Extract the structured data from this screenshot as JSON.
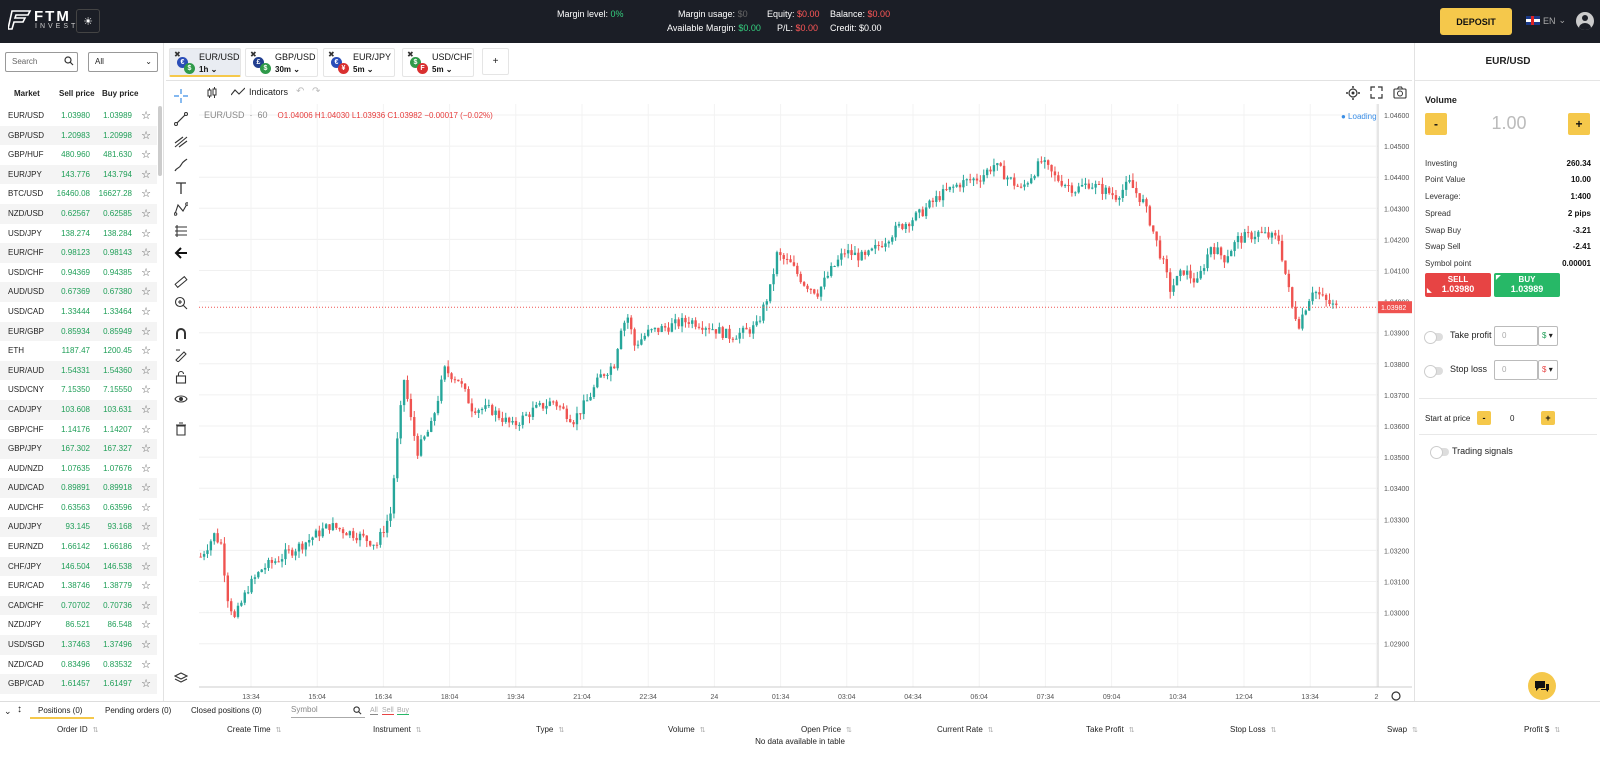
{
  "header": {
    "logo_text": "FTM",
    "logo_sub": "INVEST",
    "margin_level_label": "Margin level:",
    "margin_level_value": "0%",
    "margin_usage_label": "Margin usage:",
    "margin_usage_value": "$0",
    "available_margin_label": "Available Margin:",
    "available_margin_value": "$0.00",
    "equity_label": "Equity:",
    "equity_value": "$0.00",
    "pl_label": "P/L:",
    "pl_value": "$0.00",
    "balance_label": "Balance:",
    "balance_value": "$0.00",
    "credit_label": "Credit:",
    "credit_value": "$0.00",
    "deposit_label": "DEPOSIT",
    "language": "EN"
  },
  "market_panel": {
    "search_placeholder": "Search",
    "filter_value": "All",
    "col_market": "Market",
    "col_sell": "Sell price",
    "col_buy": "Buy price",
    "rows": [
      {
        "symbol": "EUR/USD",
        "sell": "1.03980",
        "buy": "1.03989"
      },
      {
        "symbol": "GBP/USD",
        "sell": "1.20983",
        "buy": "1.20998"
      },
      {
        "symbol": "GBP/HUF",
        "sell": "480.960",
        "buy": "481.630"
      },
      {
        "symbol": "EUR/JPY",
        "sell": "143.776",
        "buy": "143.794"
      },
      {
        "symbol": "BTC/USD",
        "sell": "16460.08",
        "buy": "16627.28"
      },
      {
        "symbol": "NZD/USD",
        "sell": "0.62567",
        "buy": "0.62585"
      },
      {
        "symbol": "USD/JPY",
        "sell": "138.274",
        "buy": "138.284"
      },
      {
        "symbol": "EUR/CHF",
        "sell": "0.98123",
        "buy": "0.98143"
      },
      {
        "symbol": "USD/CHF",
        "sell": "0.94369",
        "buy": "0.94385"
      },
      {
        "symbol": "AUD/USD",
        "sell": "0.67369",
        "buy": "0.67380"
      },
      {
        "symbol": "USD/CAD",
        "sell": "1.33444",
        "buy": "1.33464"
      },
      {
        "symbol": "EUR/GBP",
        "sell": "0.85934",
        "buy": "0.85949"
      },
      {
        "symbol": "ETH",
        "sell": "1187.47",
        "buy": "1200.45"
      },
      {
        "symbol": "EUR/AUD",
        "sell": "1.54331",
        "buy": "1.54360"
      },
      {
        "symbol": "USD/CNY",
        "sell": "7.15350",
        "buy": "7.15550"
      },
      {
        "symbol": "CAD/JPY",
        "sell": "103.608",
        "buy": "103.631"
      },
      {
        "symbol": "GBP/CHF",
        "sell": "1.14176",
        "buy": "1.14207"
      },
      {
        "symbol": "GBP/JPY",
        "sell": "167.302",
        "buy": "167.327"
      },
      {
        "symbol": "AUD/NZD",
        "sell": "1.07635",
        "buy": "1.07676"
      },
      {
        "symbol": "AUD/CAD",
        "sell": "0.89891",
        "buy": "0.89918"
      },
      {
        "symbol": "AUD/CHF",
        "sell": "0.63563",
        "buy": "0.63596"
      },
      {
        "symbol": "AUD/JPY",
        "sell": "93.145",
        "buy": "93.168"
      },
      {
        "symbol": "EUR/NZD",
        "sell": "1.66142",
        "buy": "1.66186"
      },
      {
        "symbol": "CHF/JPY",
        "sell": "146.504",
        "buy": "146.538"
      },
      {
        "symbol": "EUR/CAD",
        "sell": "1.38746",
        "buy": "1.38779"
      },
      {
        "symbol": "CAD/CHF",
        "sell": "0.70702",
        "buy": "0.70736"
      },
      {
        "symbol": "NZD/JPY",
        "sell": "86.521",
        "buy": "86.548"
      },
      {
        "symbol": "USD/SGD",
        "sell": "1.37463",
        "buy": "1.37496"
      },
      {
        "symbol": "NZD/CAD",
        "sell": "0.83496",
        "buy": "0.83532"
      },
      {
        "symbol": "GBP/CAD",
        "sell": "1.61457",
        "buy": "1.61497"
      }
    ]
  },
  "instrument_tabs": [
    {
      "name": "EUR/USD",
      "timeframe": "1h",
      "active": true,
      "coin1": "€",
      "coin1_color": "#2a4db8",
      "coin2": "$",
      "coin2_color": "#2f9a4a"
    },
    {
      "name": "GBP/USD",
      "timeframe": "30m",
      "active": false,
      "coin1": "£",
      "coin1_color": "#223f8f",
      "coin2": "$",
      "coin2_color": "#2f9a4a"
    },
    {
      "name": "EUR/JPY",
      "timeframe": "5m",
      "active": false,
      "coin1": "€",
      "coin1_color": "#2a4db8",
      "coin2": "¥",
      "coin2_color": "#d93030"
    },
    {
      "name": "USD/CHF",
      "timeframe": "5m",
      "active": false,
      "coin1": "$",
      "coin1_color": "#2f9a4a",
      "coin2": "F",
      "coin2_color": "#d93030"
    }
  ],
  "add_tab_label": "+",
  "chart_toolbar": {
    "indicators_label": "Indicators"
  },
  "chart_header": {
    "symbol": "EUR/USD",
    "interval": "60",
    "ohlc": "O1.04006  H1.04030  L1.03936  C1.03982  −0.00017 (−0.02%)",
    "loading": "● Loading"
  },
  "chart_data": {
    "type": "candlestick",
    "y_ticks": [
      "1.04600",
      "1.04500",
      "1.04400",
      "1.04300",
      "1.04200",
      "1.04100",
      "1.04000",
      "1.03900",
      "1.03800",
      "1.03700",
      "1.03600",
      "1.03500",
      "1.03400",
      "1.03300",
      "1.03200",
      "1.03100",
      "1.03000",
      "1.02900"
    ],
    "ylim": [
      1.0285,
      1.0467
    ],
    "x_ticks": [
      "13:34",
      "15:04",
      "16:34",
      "18:04",
      "19:34",
      "21:04",
      "22:34",
      "24",
      "01:34",
      "03:04",
      "04:34",
      "06:04",
      "07:34",
      "09:04",
      "10:34",
      "12:04",
      "13:34",
      "2"
    ],
    "current_price": 1.03982,
    "current_price_label": "1.03982",
    "up_color": "#26a69a",
    "down_color": "#ef5350",
    "close_path": [
      [
        0,
        1.0318
      ],
      [
        4,
        1.0325
      ],
      [
        6,
        1.0322
      ],
      [
        8,
        1.0305
      ],
      [
        10,
        1.0298
      ],
      [
        14,
        1.0308
      ],
      [
        18,
        1.0314
      ],
      [
        24,
        1.0318
      ],
      [
        30,
        1.0322
      ],
      [
        38,
        1.0328
      ],
      [
        46,
        1.0325
      ],
      [
        52,
        1.0322
      ],
      [
        56,
        1.0332
      ],
      [
        58,
        1.0355
      ],
      [
        60,
        1.0375
      ],
      [
        62,
        1.0362
      ],
      [
        64,
        1.0352
      ],
      [
        68,
        1.036
      ],
      [
        72,
        1.0378
      ],
      [
        76,
        1.0375
      ],
      [
        80,
        1.0366
      ],
      [
        86,
        1.0365
      ],
      [
        92,
        1.036
      ],
      [
        98,
        1.0365
      ],
      [
        104,
        1.0368
      ],
      [
        110,
        1.0362
      ],
      [
        114,
        1.0368
      ],
      [
        118,
        1.0376
      ],
      [
        122,
        1.038
      ],
      [
        124,
        1.0392
      ],
      [
        126,
        1.0395
      ],
      [
        128,
        1.0386
      ],
      [
        132,
        1.039
      ],
      [
        138,
        1.0392
      ],
      [
        144,
        1.0394
      ],
      [
        150,
        1.0392
      ],
      [
        156,
        1.0389
      ],
      [
        160,
        1.039
      ],
      [
        164,
        1.0392
      ],
      [
        168,
        1.0404
      ],
      [
        170,
        1.0415
      ],
      [
        174,
        1.0412
      ],
      [
        178,
        1.0406
      ],
      [
        182,
        1.0403
      ],
      [
        186,
        1.041
      ],
      [
        190,
        1.0416
      ],
      [
        196,
        1.0414
      ],
      [
        200,
        1.0418
      ],
      [
        206,
        1.0424
      ],
      [
        212,
        1.0428
      ],
      [
        218,
        1.0434
      ],
      [
        224,
        1.0438
      ],
      [
        230,
        1.044
      ],
      [
        234,
        1.0444
      ],
      [
        238,
        1.044
      ],
      [
        242,
        1.0436
      ],
      [
        248,
        1.0445
      ],
      [
        252,
        1.044
      ],
      [
        258,
        1.0436
      ],
      [
        262,
        1.0438
      ],
      [
        266,
        1.0436
      ],
      [
        270,
        1.0434
      ],
      [
        274,
        1.0438
      ],
      [
        278,
        1.0432
      ],
      [
        280,
        1.0426
      ],
      [
        284,
        1.0412
      ],
      [
        286,
        1.0404
      ],
      [
        290,
        1.041
      ],
      [
        294,
        1.0406
      ],
      [
        298,
        1.0418
      ],
      [
        302,
        1.0414
      ],
      [
        306,
        1.042
      ],
      [
        312,
        1.0422
      ],
      [
        318,
        1.042
      ],
      [
        322,
        1.0398
      ],
      [
        324,
        1.0393
      ],
      [
        328,
        1.0404
      ],
      [
        332,
        1.04
      ],
      [
        335,
        1.0398
      ]
    ]
  },
  "order_panel": {
    "title": "EUR/USD",
    "volume_label": "Volume",
    "volume_value": "1.00",
    "minus": "-",
    "plus": "+",
    "details": [
      {
        "key": "Investing",
        "value": "260.34"
      },
      {
        "key": "Point Value",
        "value": "10.00"
      },
      {
        "key": "Leverage:",
        "value": "1:400"
      },
      {
        "key": "Spread",
        "value": "2 pips"
      },
      {
        "key": "Swap Buy",
        "value": "-3.21"
      },
      {
        "key": "Swap Sell",
        "value": "-2.41"
      },
      {
        "key": "Symbol point",
        "value": "0.00001"
      }
    ],
    "sell_label": "SELL",
    "sell_price": "1.03980",
    "buy_label": "BUY",
    "buy_price": "1.03989",
    "take_profit_label": "Take profit",
    "take_profit_value": "0",
    "stop_loss_label": "Stop loss",
    "stop_loss_value": "0",
    "currency_symbol": "$",
    "start_at_price_label": "Start at price",
    "start_at_price_value": "0",
    "trading_signals_label": "Trading signals"
  },
  "bottom_panel": {
    "tabs": [
      "Positions (0)",
      "Pending orders (0)",
      "Closed positions (0)"
    ],
    "symbol_placeholder": "Symbol",
    "filter_all": "All",
    "filter_sell": "Sell",
    "filter_buy": "Buy",
    "columns": [
      "Order ID",
      "Create Time",
      "Instrument",
      "Type",
      "Volume",
      "Open Price",
      "Current Rate",
      "Take Profit",
      "Stop Loss",
      "Swap",
      "Profit $"
    ],
    "empty_text": "No data available in table"
  }
}
